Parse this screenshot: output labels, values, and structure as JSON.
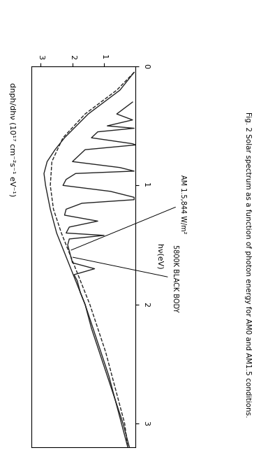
{
  "chart_data": {
    "type": "line",
    "title": "Fig. 2 Solar spectrum as a function of photon energy for AM0 and AM1.5 conditions.",
    "x_label": "hν(eV)",
    "y_label": "dnph/dhν (10¹⁷ cm⁻²s⁻¹ eV⁻¹)",
    "xlim": [
      0,
      3.2
    ],
    "xticks": [
      0,
      1,
      2,
      3
    ],
    "ylim": [
      0,
      3.3
    ],
    "yticks": [
      1,
      2,
      3
    ],
    "grid": false,
    "series": [
      {
        "name": "AM 1.5,844 W/m²",
        "color": "#222222",
        "line_style": "solid",
        "x": [
          0.3,
          0.4,
          0.45,
          0.5,
          0.52,
          0.55,
          0.6,
          0.65,
          0.66,
          0.7,
          0.75,
          0.8,
          0.85,
          0.88,
          0.9,
          0.95,
          1.0,
          1.05,
          1.1,
          1.12,
          1.15,
          1.2,
          1.25,
          1.3,
          1.35,
          1.4,
          1.42,
          1.45,
          1.5,
          1.55,
          1.6,
          1.65,
          1.7,
          1.75,
          1.8,
          1.85,
          1.9,
          2.0,
          2.2,
          2.4,
          2.6,
          2.8,
          3.0,
          3.2
        ],
        "values": [
          0.1,
          0.6,
          0.1,
          0.9,
          0.05,
          1.2,
          1.4,
          0.1,
          0.0,
          1.6,
          1.8,
          2.0,
          0.5,
          0.05,
          1.9,
          2.2,
          2.3,
          0.8,
          0.05,
          0.05,
          1.7,
          2.2,
          2.25,
          1.2,
          2.1,
          2.2,
          1.0,
          2.1,
          2.15,
          2.1,
          2.05,
          2.0,
          1.3,
          1.95,
          1.85,
          1.8,
          1.75,
          1.6,
          1.4,
          1.15,
          0.9,
          0.65,
          0.4,
          0.2
        ]
      },
      {
        "color": "#222222",
        "line_style": "solid",
        "x": [
          0.05,
          0.2,
          0.4,
          0.6,
          0.7,
          0.8,
          0.9,
          1.0,
          1.2,
          1.4,
          1.6,
          1.8,
          2.0,
          2.2,
          2.4,
          2.6,
          2.8,
          3.0,
          3.2
        ],
        "values": [
          0.05,
          0.5,
          1.5,
          2.25,
          2.55,
          2.8,
          2.9,
          2.85,
          2.7,
          2.5,
          2.2,
          1.9,
          1.6,
          1.35,
          1.1,
          0.85,
          0.65,
          0.45,
          0.25
        ]
      },
      {
        "name": "5800K BLACK BODY",
        "color": "#222222",
        "line_style": "dashed",
        "x": [
          0.05,
          0.2,
          0.4,
          0.6,
          0.8,
          1.0,
          1.2,
          1.4,
          1.6,
          1.8,
          2.0,
          2.2,
          2.4,
          2.6,
          2.8,
          3.0,
          3.2
        ],
        "values": [
          0.05,
          0.6,
          1.6,
          2.3,
          2.65,
          2.7,
          2.6,
          2.35,
          2.05,
          1.75,
          1.45,
          1.2,
          0.95,
          0.75,
          0.55,
          0.35,
          0.25
        ]
      }
    ]
  }
}
